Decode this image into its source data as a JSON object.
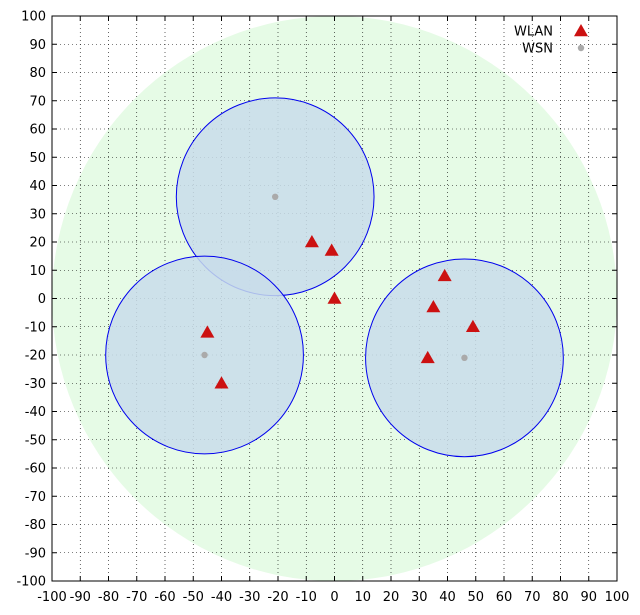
{
  "chart_data": {
    "type": "scatter",
    "title": "",
    "xlabel": "",
    "ylabel": "",
    "xlim": [
      -100,
      100
    ],
    "ylim": [
      -100,
      100
    ],
    "xticks": [
      -100,
      -90,
      -80,
      -70,
      -60,
      -50,
      -40,
      -30,
      -20,
      -10,
      0,
      10,
      20,
      30,
      40,
      50,
      60,
      70,
      80,
      90,
      100
    ],
    "yticks": [
      -100,
      -90,
      -80,
      -70,
      -60,
      -50,
      -40,
      -30,
      -20,
      -10,
      0,
      10,
      20,
      30,
      40,
      50,
      60,
      70,
      80,
      90,
      100
    ],
    "grid": true,
    "legend_position": "top-right",
    "coverage_area": {
      "center": [
        0,
        0
      ],
      "radius": 100,
      "color": "#e6fbe6"
    },
    "coverage_circles": [
      {
        "center": [
          -21,
          36
        ],
        "radius": 35
      },
      {
        "center": [
          -46,
          -20
        ],
        "radius": 35
      },
      {
        "center": [
          46,
          -21
        ],
        "radius": 35
      }
    ],
    "circle_fill": "#c8dcea",
    "circle_stroke": "#0000ee",
    "series": [
      {
        "name": "WLAN",
        "marker": "triangle",
        "color": "#cc1111",
        "points": [
          [
            -8,
            20
          ],
          [
            -1,
            17
          ],
          [
            0,
            0
          ],
          [
            -45,
            -12
          ],
          [
            -40,
            -30
          ],
          [
            39,
            8
          ],
          [
            35,
            -3
          ],
          [
            49,
            -10
          ],
          [
            33,
            -21
          ]
        ]
      },
      {
        "name": "WSN",
        "marker": "circle",
        "color": "#aaaaaa",
        "points": [
          [
            -21,
            36
          ],
          [
            -46,
            -20
          ],
          [
            46,
            -21
          ]
        ]
      }
    ]
  }
}
